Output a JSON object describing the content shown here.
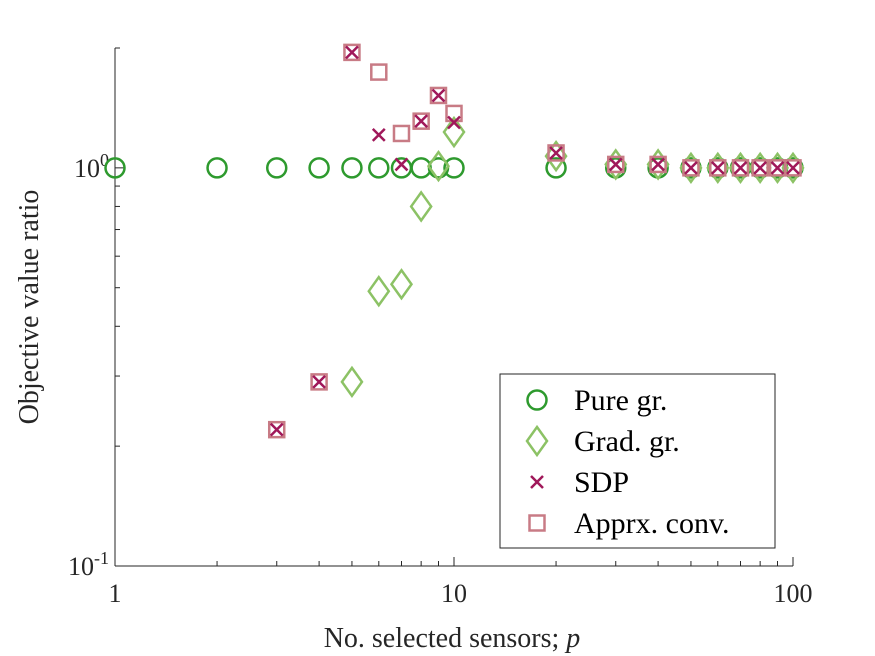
{
  "chart_data": {
    "type": "scatter",
    "xscale": "log",
    "yscale": "log",
    "xlim": [
      1,
      100
    ],
    "ylim": [
      0.1,
      2.0
    ],
    "xlabel": "No. selected sensors; ",
    "xlabel_var": "p",
    "ylabel": "Objective value ratio",
    "xticks": [
      {
        "value": 1,
        "label": "1"
      },
      {
        "value": 10,
        "label": "10"
      },
      {
        "value": 100,
        "label": "100"
      }
    ],
    "yticks": [
      {
        "value": 0.1,
        "base": "10",
        "exp": "-1"
      },
      {
        "value": 1,
        "base": "10",
        "exp": "0"
      }
    ],
    "legend_position": "bottom-right",
    "series": [
      {
        "name": "Pure gr.",
        "marker": "circle",
        "color": "#2e9a2e",
        "points": [
          [
            1,
            1.0
          ],
          [
            2,
            1.0
          ],
          [
            3,
            1.0
          ],
          [
            4,
            1.0
          ],
          [
            5,
            1.0
          ],
          [
            6,
            1.0
          ],
          [
            7,
            1.0
          ],
          [
            8,
            1.0
          ],
          [
            9,
            1.0
          ],
          [
            10,
            1.0
          ],
          [
            20,
            1.0
          ],
          [
            30,
            1.0
          ],
          [
            40,
            1.0
          ],
          [
            50,
            1.0
          ],
          [
            60,
            1.0
          ],
          [
            70,
            1.0
          ],
          [
            80,
            1.0
          ],
          [
            90,
            1.0
          ],
          [
            100,
            1.0
          ]
        ]
      },
      {
        "name": "Grad. gr.",
        "marker": "diamond",
        "color": "#8cc265",
        "points": [
          [
            5,
            0.29
          ],
          [
            6,
            0.49
          ],
          [
            7,
            0.51
          ],
          [
            8,
            0.8
          ],
          [
            9,
            1.01
          ],
          [
            10,
            1.23
          ],
          [
            20,
            1.07
          ],
          [
            30,
            1.02
          ],
          [
            40,
            1.02
          ],
          [
            50,
            1.0
          ],
          [
            60,
            1.0
          ],
          [
            70,
            1.0
          ],
          [
            80,
            1.0
          ],
          [
            90,
            1.0
          ],
          [
            100,
            1.0
          ]
        ]
      },
      {
        "name": "SDP",
        "marker": "x",
        "color": "#a0185a",
        "points": [
          [
            3,
            0.22
          ],
          [
            4,
            0.29
          ],
          [
            5,
            1.95
          ],
          [
            6,
            1.21
          ],
          [
            7,
            1.02
          ],
          [
            8,
            1.31
          ],
          [
            9,
            1.52
          ],
          [
            10,
            1.3
          ],
          [
            20,
            1.09
          ],
          [
            30,
            1.02
          ],
          [
            40,
            1.02
          ],
          [
            50,
            1.0
          ],
          [
            60,
            1.0
          ],
          [
            70,
            1.0
          ],
          [
            80,
            1.0
          ],
          [
            90,
            1.0
          ],
          [
            100,
            1.0
          ]
        ]
      },
      {
        "name": "Apprx. conv.",
        "marker": "square",
        "color": "#c87b85",
        "points": [
          [
            3,
            0.22
          ],
          [
            4,
            0.29
          ],
          [
            5,
            1.95
          ],
          [
            6,
            1.74
          ],
          [
            7,
            1.22
          ],
          [
            8,
            1.31
          ],
          [
            9,
            1.52
          ],
          [
            10,
            1.37
          ],
          [
            20,
            1.09
          ],
          [
            30,
            1.02
          ],
          [
            40,
            1.02
          ],
          [
            50,
            1.0
          ],
          [
            60,
            1.0
          ],
          [
            70,
            1.0
          ],
          [
            80,
            1.0
          ],
          [
            90,
            1.0
          ],
          [
            100,
            1.0
          ]
        ]
      }
    ]
  }
}
